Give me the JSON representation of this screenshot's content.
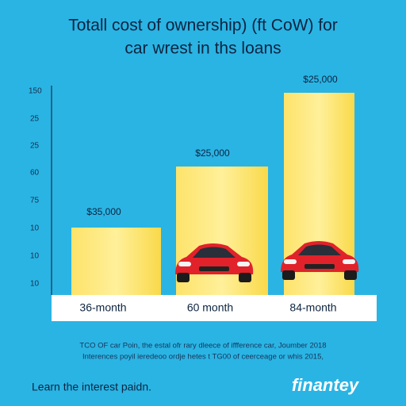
{
  "header": {
    "title_lines": [
      "Totall cost of ownership) (ft CoW) for",
      "car wrest in ths loans"
    ]
  },
  "axis_labels": [
    "150",
    "25",
    "25",
    "60",
    "75",
    "10",
    "10",
    "10"
  ],
  "bars": [
    {
      "label": "$35,000",
      "category": "36-month"
    },
    {
      "label": "$25,000",
      "category": "60 month"
    },
    {
      "label": "$25,000",
      "category": "84-month"
    }
  ],
  "footnote_lines": [
    "TCO OF car Poin, the estal ofr rary dleece of iffference car, Joumber 2018",
    "Interences poyil ieredeoo ordje hetes t TG00 of ceerceage or whis 2015,"
  ],
  "tagline": "Learn the interest paidn.",
  "brand": "finantey"
}
